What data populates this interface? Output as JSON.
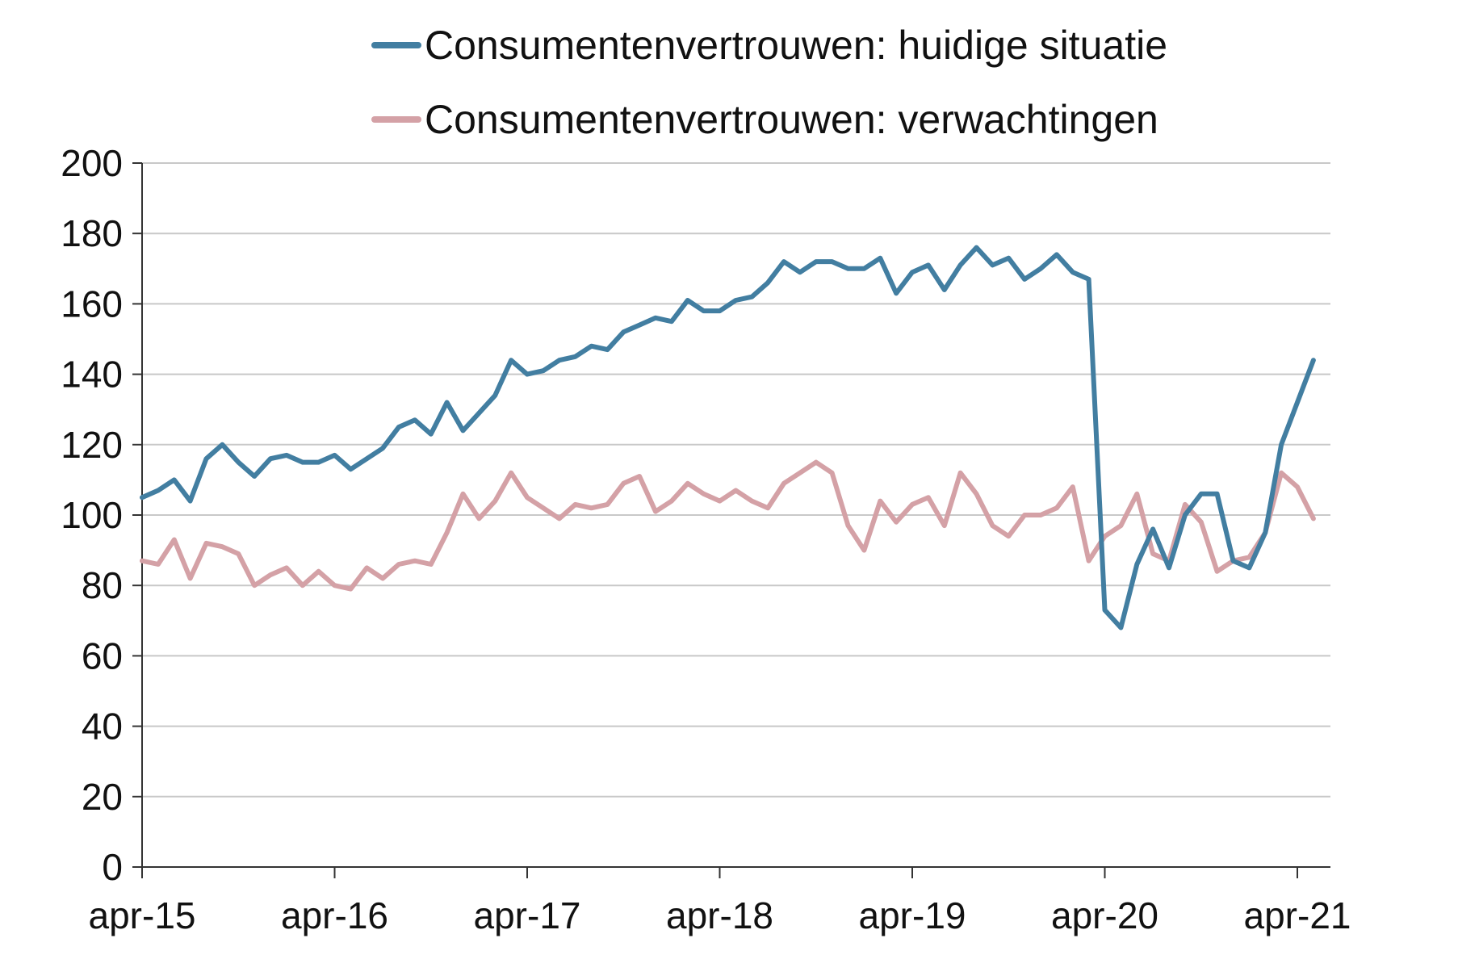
{
  "chart_data": {
    "type": "line",
    "title": "",
    "xlabel": "",
    "ylabel": "",
    "ylim": [
      0,
      200
    ],
    "yticks": [
      "0",
      "20",
      "40",
      "60",
      "80",
      "100",
      "120",
      "140",
      "160",
      "180",
      "200"
    ],
    "xticks": [
      "apr-15",
      "apr-16",
      "apr-17",
      "apr-18",
      "apr-19",
      "apr-20",
      "apr-21"
    ],
    "grid": "horizontal",
    "legend_position": "top",
    "x_start": "apr-15",
    "x_frequency": "monthly",
    "series": [
      {
        "name": "Consumentenvertrouwen: huidige situatie",
        "color": "#427ea1",
        "values": [
          105,
          107,
          110,
          104,
          116,
          120,
          115,
          111,
          116,
          117,
          115,
          115,
          117,
          113,
          116,
          119,
          125,
          127,
          123,
          132,
          124,
          129,
          134,
          144,
          140,
          141,
          144,
          145,
          148,
          147,
          152,
          154,
          156,
          155,
          161,
          158,
          158,
          161,
          162,
          166,
          172,
          169,
          172,
          172,
          170,
          170,
          173,
          163,
          169,
          171,
          164,
          171,
          176,
          171,
          173,
          167,
          170,
          174,
          169,
          167,
          73,
          68,
          86,
          96,
          85,
          100,
          106,
          106,
          87,
          85,
          95,
          120,
          132,
          144
        ]
      },
      {
        "name": "Consumentenvertrouwen: verwachtingen",
        "color": "#d4a1a6",
        "values": [
          87,
          86,
          93,
          82,
          92,
          91,
          89,
          80,
          83,
          85,
          80,
          84,
          80,
          79,
          85,
          82,
          86,
          87,
          86,
          95,
          106,
          99,
          104,
          112,
          105,
          102,
          99,
          103,
          102,
          103,
          109,
          111,
          101,
          104,
          109,
          106,
          104,
          107,
          104,
          102,
          109,
          112,
          115,
          112,
          97,
          90,
          104,
          98,
          103,
          105,
          97,
          112,
          106,
          97,
          94,
          100,
          100,
          102,
          108,
          87,
          94,
          97,
          106,
          89,
          87,
          103,
          98,
          84,
          87,
          88,
          95,
          112,
          108,
          99
        ]
      }
    ]
  }
}
